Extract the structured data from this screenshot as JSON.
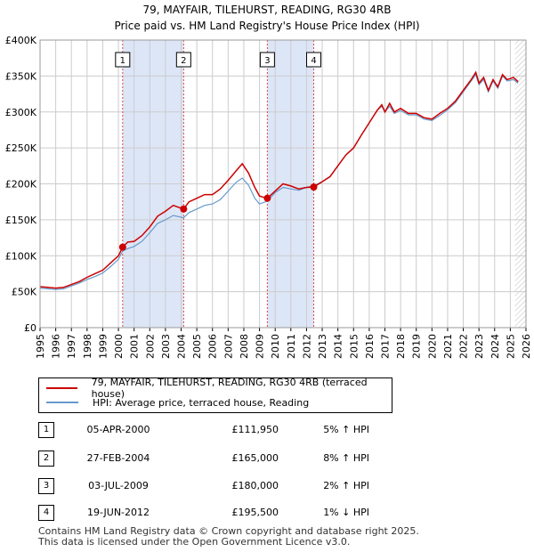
{
  "chart_data": {
    "type": "line",
    "title": "79, MAYFAIR, TILEHURST, READING, RG30 4RB",
    "subtitle": "Price paid vs. HM Land Registry's House Price Index (HPI)",
    "xlabel": "",
    "ylabel": "",
    "xlim": [
      1995,
      2026
    ],
    "ylim": [
      0,
      400000
    ],
    "yticks": [
      0,
      50000,
      100000,
      150000,
      200000,
      250000,
      300000,
      350000,
      400000
    ],
    "ytick_labels": [
      "£0",
      "£50K",
      "£100K",
      "£150K",
      "£200K",
      "£250K",
      "£300K",
      "£350K",
      "£400K"
    ],
    "xticks": [
      "1995",
      "1996",
      "1997",
      "1998",
      "1999",
      "2000",
      "2001",
      "2002",
      "2003",
      "2004",
      "2005",
      "2006",
      "2007",
      "2008",
      "2009",
      "2010",
      "2011",
      "2012",
      "2013",
      "2014",
      "2015",
      "2016",
      "2017",
      "2018",
      "2019",
      "2020",
      "2021",
      "2022",
      "2023",
      "2024",
      "2025",
      "2026"
    ],
    "grid": true,
    "series": [
      {
        "name": "79, MAYFAIR, TILEHURST, READING, RG30 4RB (terraced house)",
        "color": "#cc0000",
        "points": [
          [
            1995.0,
            57000
          ],
          [
            1995.5,
            56000
          ],
          [
            1996.0,
            55000
          ],
          [
            1996.5,
            56000
          ],
          [
            1997.0,
            60000
          ],
          [
            1997.5,
            64000
          ],
          [
            1998.0,
            70000
          ],
          [
            1998.5,
            75000
          ],
          [
            1999.0,
            80000
          ],
          [
            1999.5,
            90000
          ],
          [
            2000.0,
            100000
          ],
          [
            2000.27,
            111950
          ],
          [
            2000.6,
            119000
          ],
          [
            2001.0,
            120000
          ],
          [
            2001.5,
            128000
          ],
          [
            2002.0,
            140000
          ],
          [
            2002.5,
            155000
          ],
          [
            2003.0,
            162000
          ],
          [
            2003.5,
            170000
          ],
          [
            2004.16,
            165000
          ],
          [
            2004.5,
            175000
          ],
          [
            2005.0,
            180000
          ],
          [
            2005.5,
            185000
          ],
          [
            2006.0,
            185000
          ],
          [
            2006.5,
            193000
          ],
          [
            2007.0,
            205000
          ],
          [
            2007.5,
            218000
          ],
          [
            2007.9,
            228000
          ],
          [
            2008.3,
            215000
          ],
          [
            2008.7,
            195000
          ],
          [
            2009.0,
            183000
          ],
          [
            2009.5,
            180000
          ],
          [
            2010.0,
            190000
          ],
          [
            2010.5,
            200000
          ],
          [
            2011.0,
            197000
          ],
          [
            2011.5,
            193000
          ],
          [
            2012.0,
            195000
          ],
          [
            2012.46,
            195500
          ],
          [
            2013.0,
            203000
          ],
          [
            2013.5,
            210000
          ],
          [
            2014.0,
            225000
          ],
          [
            2014.5,
            240000
          ],
          [
            2015.0,
            250000
          ],
          [
            2015.5,
            268000
          ],
          [
            2016.0,
            285000
          ],
          [
            2016.5,
            302000
          ],
          [
            2016.8,
            310000
          ],
          [
            2017.0,
            300000
          ],
          [
            2017.3,
            312000
          ],
          [
            2017.6,
            300000
          ],
          [
            2018.0,
            305000
          ],
          [
            2018.5,
            298000
          ],
          [
            2019.0,
            298000
          ],
          [
            2019.5,
            292000
          ],
          [
            2020.0,
            290000
          ],
          [
            2020.5,
            298000
          ],
          [
            2021.0,
            305000
          ],
          [
            2021.5,
            315000
          ],
          [
            2022.0,
            330000
          ],
          [
            2022.5,
            345000
          ],
          [
            2022.8,
            355000
          ],
          [
            2023.0,
            340000
          ],
          [
            2023.3,
            348000
          ],
          [
            2023.6,
            330000
          ],
          [
            2023.9,
            345000
          ],
          [
            2024.2,
            335000
          ],
          [
            2024.5,
            352000
          ],
          [
            2024.8,
            345000
          ],
          [
            2025.2,
            348000
          ],
          [
            2025.5,
            342000
          ]
        ]
      },
      {
        "name": "HPI: Average price, terraced house, Reading",
        "color": "#6699cc",
        "points": [
          [
            1995.0,
            55000
          ],
          [
            1995.5,
            54000
          ],
          [
            1996.0,
            53000
          ],
          [
            1996.5,
            54000
          ],
          [
            1997.0,
            58000
          ],
          [
            1997.5,
            62000
          ],
          [
            1998.0,
            67000
          ],
          [
            1998.5,
            71000
          ],
          [
            1999.0,
            76000
          ],
          [
            1999.5,
            85000
          ],
          [
            2000.0,
            95000
          ],
          [
            2000.27,
            106600
          ],
          [
            2000.6,
            110000
          ],
          [
            2001.0,
            113000
          ],
          [
            2001.5,
            120000
          ],
          [
            2002.0,
            132000
          ],
          [
            2002.5,
            145000
          ],
          [
            2003.0,
            150000
          ],
          [
            2003.5,
            156000
          ],
          [
            2004.16,
            152800
          ],
          [
            2004.5,
            160000
          ],
          [
            2005.0,
            165000
          ],
          [
            2005.5,
            170000
          ],
          [
            2006.0,
            172000
          ],
          [
            2006.5,
            178000
          ],
          [
            2007.0,
            190000
          ],
          [
            2007.5,
            202000
          ],
          [
            2007.9,
            208000
          ],
          [
            2008.3,
            198000
          ],
          [
            2008.7,
            180000
          ],
          [
            2009.0,
            172000
          ],
          [
            2009.5,
            176000
          ],
          [
            2010.0,
            188000
          ],
          [
            2010.5,
            195000
          ],
          [
            2011.0,
            193000
          ],
          [
            2011.5,
            191000
          ],
          [
            2012.0,
            195000
          ],
          [
            2012.46,
            197500
          ],
          [
            2013.0,
            203000
          ],
          [
            2013.5,
            210000
          ],
          [
            2014.0,
            225000
          ],
          [
            2014.5,
            240000
          ],
          [
            2015.0,
            250000
          ],
          [
            2015.5,
            268000
          ],
          [
            2016.0,
            285000
          ],
          [
            2016.5,
            302000
          ],
          [
            2016.8,
            308000
          ],
          [
            2017.0,
            300000
          ],
          [
            2017.3,
            308000
          ],
          [
            2017.6,
            298000
          ],
          [
            2018.0,
            302000
          ],
          [
            2018.5,
            296000
          ],
          [
            2019.0,
            296000
          ],
          [
            2019.5,
            290000
          ],
          [
            2020.0,
            288000
          ],
          [
            2020.5,
            295000
          ],
          [
            2021.0,
            303000
          ],
          [
            2021.5,
            313000
          ],
          [
            2022.0,
            328000
          ],
          [
            2022.5,
            343000
          ],
          [
            2022.8,
            352000
          ],
          [
            2023.0,
            338000
          ],
          [
            2023.3,
            345000
          ],
          [
            2023.6,
            328000
          ],
          [
            2023.9,
            343000
          ],
          [
            2024.2,
            333000
          ],
          [
            2024.5,
            350000
          ],
          [
            2024.8,
            343000
          ],
          [
            2025.2,
            345000
          ],
          [
            2025.5,
            340000
          ]
        ]
      }
    ],
    "sales": [
      {
        "num": "1",
        "x": 2000.27,
        "y": 111950
      },
      {
        "num": "2",
        "x": 2004.16,
        "y": 165000
      },
      {
        "num": "3",
        "x": 2009.5,
        "y": 180000
      },
      {
        "num": "4",
        "x": 2012.46,
        "y": 195500
      }
    ],
    "shaded_ranges": [
      [
        2000.27,
        2004.16
      ],
      [
        2009.5,
        2012.46
      ]
    ],
    "hatch_start": 2025.3
  },
  "legend": {
    "property_label": "79, MAYFAIR, TILEHURST, READING, RG30 4RB (terraced house)",
    "hpi_label": "HPI: Average price, terraced house, Reading"
  },
  "sales_table": [
    {
      "num": "1",
      "date": "05-APR-2000",
      "price": "£111,950",
      "hpi": "5% ↑ HPI"
    },
    {
      "num": "2",
      "date": "27-FEB-2004",
      "price": "£165,000",
      "hpi": "8% ↑ HPI"
    },
    {
      "num": "3",
      "date": "03-JUL-2009",
      "price": "£180,000",
      "hpi": "2% ↑ HPI"
    },
    {
      "num": "4",
      "date": "19-JUN-2012",
      "price": "£195,500",
      "hpi": "1% ↓ HPI"
    }
  ],
  "footer": {
    "line1": "Contains HM Land Registry data © Crown copyright and database right 2025.",
    "line2": "This data is licensed under the Open Government Licence v3.0."
  }
}
